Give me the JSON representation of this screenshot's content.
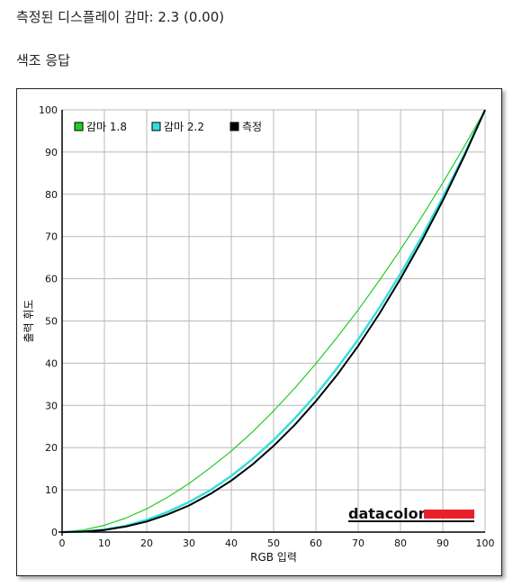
{
  "header": {
    "gamma_text": "측정된 디스플레이 감마: 2.3 (0.00)",
    "section_title": "색조 응답"
  },
  "logo": {
    "text": "datacolor",
    "bar_color": "#e8202a"
  },
  "chart_data": {
    "type": "line",
    "xlabel": "RGB 입력",
    "ylabel": "출력 휘도",
    "xlim": [
      0,
      100
    ],
    "ylim": [
      0,
      100
    ],
    "xticks": [
      0,
      10,
      20,
      30,
      40,
      50,
      60,
      70,
      80,
      90,
      100
    ],
    "yticks": [
      0,
      10,
      20,
      30,
      40,
      50,
      60,
      70,
      80,
      90,
      100
    ],
    "grid": true,
    "legend_position": "top-left",
    "series": [
      {
        "name": "감마 1.8",
        "color": "#22cc22",
        "x": [
          0,
          5,
          10,
          15,
          20,
          25,
          30,
          35,
          40,
          45,
          50,
          55,
          60,
          65,
          70,
          75,
          80,
          85,
          90,
          95,
          100
        ],
        "values": [
          0,
          0.5,
          1.6,
          3.3,
          5.5,
          8.3,
          11.5,
          15.2,
          19.2,
          23.7,
          28.7,
          34.1,
          39.9,
          46.1,
          52.6,
          59.6,
          66.9,
          74.6,
          82.7,
          91.2,
          100
        ]
      },
      {
        "name": "감마 2.2",
        "color": "#33dddd",
        "x": [
          0,
          5,
          10,
          15,
          20,
          25,
          30,
          35,
          40,
          45,
          50,
          55,
          60,
          65,
          70,
          75,
          80,
          85,
          90,
          95,
          100
        ],
        "values": [
          0,
          0.1,
          0.6,
          1.5,
          2.9,
          4.8,
          7.1,
          9.9,
          13.3,
          17.3,
          21.8,
          26.9,
          32.5,
          38.8,
          45.6,
          53.1,
          61.2,
          69.9,
          79.3,
          89.3,
          100
        ]
      },
      {
        "name": "측정",
        "color": "#000000",
        "x": [
          0,
          5,
          10,
          15,
          20,
          25,
          30,
          35,
          40,
          45,
          50,
          55,
          60,
          65,
          70,
          75,
          80,
          85,
          90,
          95,
          100
        ],
        "values": [
          0,
          0.1,
          0.5,
          1.3,
          2.5,
          4.2,
          6.3,
          9.0,
          12.2,
          16.0,
          20.4,
          25.4,
          31.0,
          37.2,
          44.1,
          51.7,
          60.0,
          68.9,
          78.5,
          88.9,
          100
        ]
      }
    ]
  }
}
